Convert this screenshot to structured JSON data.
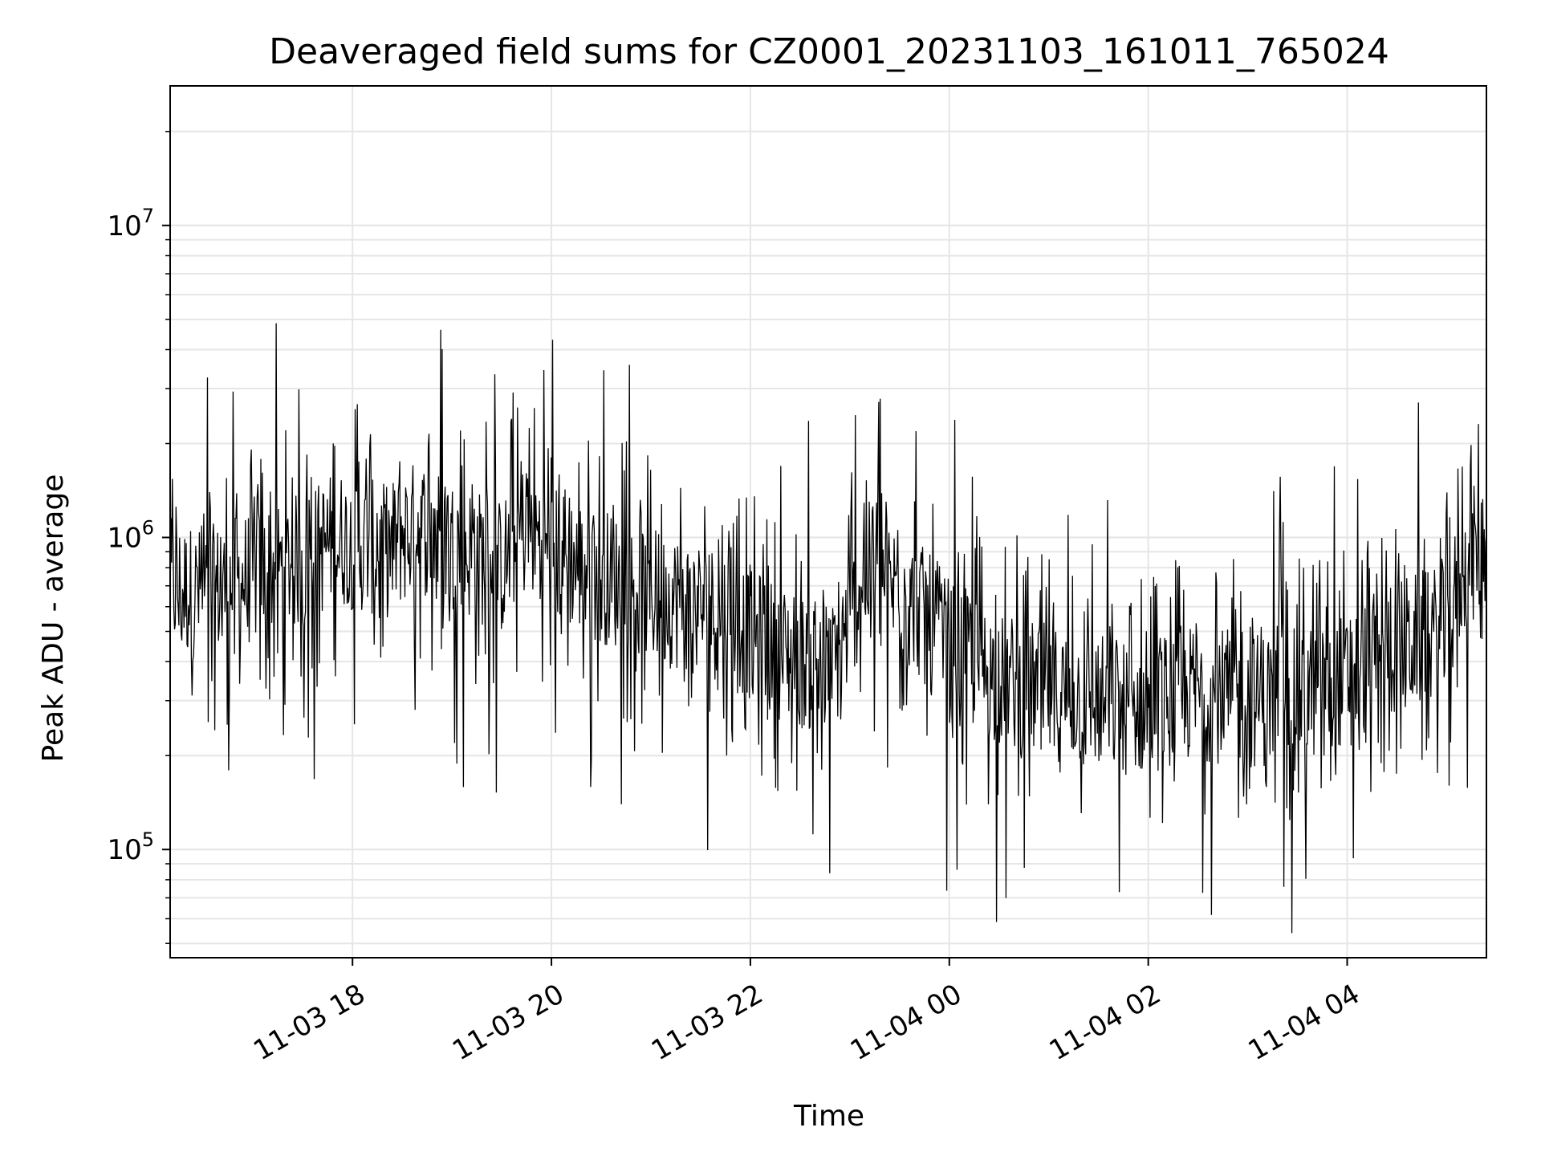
{
  "chart_data": {
    "type": "line",
    "title": "Deaveraged field sums for CZ0001_20231103_161011_765024",
    "xlabel": "Time",
    "ylabel": "Peak ADU - average",
    "yscale": "log",
    "ylim": [
      45000,
      28000000
    ],
    "xlim": [
      "2023-11-03 16:10",
      "2023-11-04 05:24"
    ],
    "grid": true,
    "line_color": "#000000",
    "grid_color": "#e6e6e6",
    "x_ticks": [
      {
        "label": "11-03 18",
        "time": "2023-11-03 18:00"
      },
      {
        "label": "11-03 20",
        "time": "2023-11-03 20:00"
      },
      {
        "label": "11-03 22",
        "time": "2023-11-03 22:00"
      },
      {
        "label": "11-04 00",
        "time": "2023-11-04 00:00"
      },
      {
        "label": "11-04 02",
        "time": "2023-11-04 02:00"
      },
      {
        "label": "11-04 04",
        "time": "2023-11-04 04:00"
      }
    ],
    "y_ticks": [
      {
        "base": "10",
        "exp": "5",
        "value": 100000
      },
      {
        "base": "10",
        "exp": "6",
        "value": 1000000
      },
      {
        "base": "10",
        "exp": "7",
        "value": 10000000
      }
    ],
    "series": [
      {
        "x": [
          "2023-11-03 16:10",
          "2023-11-03 16:30",
          "2023-11-03 17:00",
          "2023-11-03 17:30",
          "2023-11-03 17:50",
          "2023-11-03 18:20",
          "2023-11-03 18:40",
          "2023-11-03 19:00",
          "2023-11-03 19:30",
          "2023-11-03 19:45",
          "2023-11-03 20:00",
          "2023-11-03 20:20",
          "2023-11-03 20:45",
          "2023-11-03 21:00",
          "2023-11-03 21:30",
          "2023-11-03 21:50",
          "2023-11-03 22:10",
          "2023-11-03 22:30",
          "2023-11-03 22:50",
          "2023-11-03 23:10",
          "2023-11-03 23:40",
          "2023-11-04 00:00",
          "2023-11-04 00:30",
          "2023-11-04 01:00",
          "2023-11-04 01:30",
          "2023-11-04 01:50",
          "2023-11-04 02:10",
          "2023-11-04 02:30",
          "2023-11-04 03:00",
          "2023-11-04 03:30",
          "2023-11-04 04:00",
          "2023-11-04 04:30",
          "2023-11-04 05:00",
          "2023-11-04 05:10",
          "2023-11-04 05:24"
        ],
        "y": [
          700000,
          650000,
          750000,
          850000,
          1000000,
          900000,
          1100000,
          950000,
          800000,
          1100000,
          900000,
          800000,
          700000,
          650000,
          600000,
          550000,
          450000,
          400000,
          380000,
          800000,
          600000,
          450000,
          350000,
          320000,
          300000,
          280000,
          300000,
          320000,
          300000,
          310000,
          350000,
          450000,
          500000,
          800000,
          1000000
        ]
      }
    ]
  }
}
